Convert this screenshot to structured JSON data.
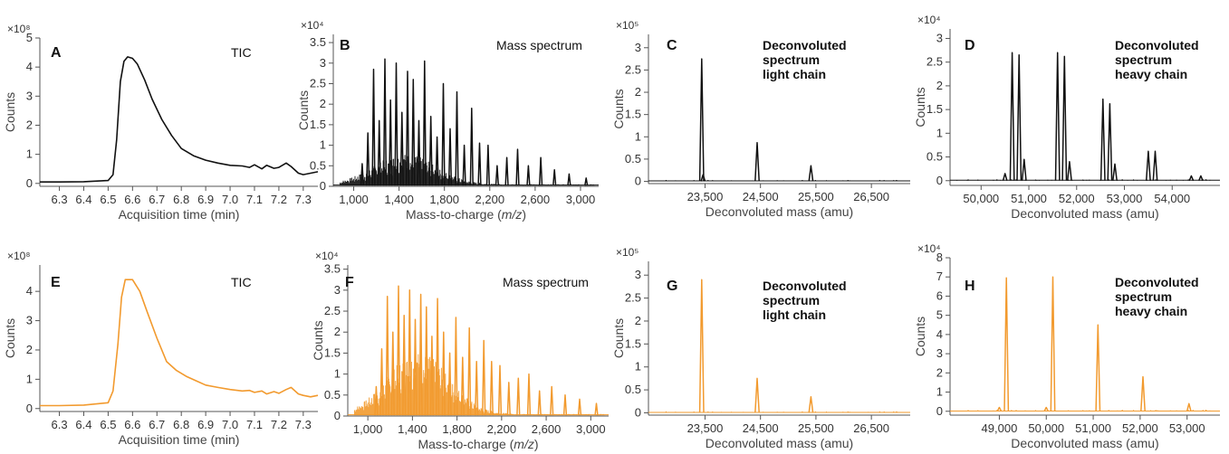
{
  "colors": {
    "black_series": "#111111",
    "orange_series": "#F29A2E"
  },
  "chart_data": [
    {
      "id": "A",
      "type": "line",
      "color": "#111111",
      "title": "TIC",
      "multiplier": "×10⁸",
      "xlabel": "Acquisition time (min)",
      "ylabel": "Counts",
      "xlim": [
        6.22,
        7.36
      ],
      "ylim": [
        -0.1,
        5
      ],
      "xticks": [
        6.3,
        6.4,
        6.5,
        6.6,
        6.7,
        6.8,
        6.9,
        7.0,
        7.1,
        7.2,
        7.3
      ],
      "xtick_labels": [
        "6.3",
        "6.4",
        "6.5",
        "6.6",
        "6.7",
        "6.8",
        "6.9",
        "7.0",
        "7.1",
        "7.2",
        "7.3"
      ],
      "yticks": [
        0,
        1,
        2,
        3,
        4,
        5
      ],
      "ytick_labels": [
        "0",
        "1",
        "2",
        "3",
        "4",
        "5"
      ],
      "x": [
        6.22,
        6.3,
        6.4,
        6.5,
        6.52,
        6.535,
        6.55,
        6.565,
        6.58,
        6.6,
        6.62,
        6.65,
        6.68,
        6.72,
        6.76,
        6.8,
        6.85,
        6.9,
        6.95,
        7.0,
        7.05,
        7.08,
        7.1,
        7.13,
        7.15,
        7.18,
        7.2,
        7.23,
        7.25,
        7.28,
        7.3,
        7.33,
        7.36
      ],
      "y": [
        0.05,
        0.05,
        0.06,
        0.1,
        0.3,
        1.5,
        3.5,
        4.2,
        4.35,
        4.3,
        4.1,
        3.55,
        2.9,
        2.2,
        1.65,
        1.2,
        0.95,
        0.8,
        0.7,
        0.62,
        0.6,
        0.55,
        0.64,
        0.5,
        0.62,
        0.52,
        0.55,
        0.7,
        0.58,
        0.35,
        0.3,
        0.35,
        0.4
      ]
    },
    {
      "id": "B",
      "type": "line",
      "color": "#111111",
      "title": "Mass spectrum",
      "multiplier": "×10⁴",
      "xlabel": "Mass-to-charge",
      "xlabel_italic": "m/z",
      "ylabel": "Counts",
      "xlim": [
        820,
        3160
      ],
      "ylim": [
        0,
        3.7
      ],
      "xticks": [
        1000,
        1400,
        1800,
        2200,
        2600,
        3000
      ],
      "xtick_labels": [
        "1,000",
        "1,400",
        "1,800",
        "2,200",
        "2,600",
        "3,000"
      ],
      "yticks": [
        0,
        0.5,
        1,
        1.5,
        2,
        2.5,
        3,
        3.5
      ],
      "ytick_labels": [
        "0",
        "0.5",
        "1",
        "1.5",
        "2",
        "2.5",
        "3",
        "3.5"
      ],
      "peak_x": [
        1075,
        1125,
        1175,
        1225,
        1275,
        1325,
        1375,
        1425,
        1475,
        1525,
        1575,
        1625,
        1680,
        1735,
        1790,
        1850,
        1910,
        1975,
        2040,
        2110,
        2185,
        2265,
        2350,
        2445,
        2540,
        2650,
        2770,
        2900,
        3050
      ],
      "peak_y": [
        0.55,
        1.3,
        2.85,
        1.6,
        3.1,
        2.1,
        3.0,
        1.8,
        2.8,
        2.6,
        1.6,
        3.05,
        1.7,
        1.2,
        2.5,
        1.4,
        2.3,
        1.0,
        1.9,
        1.05,
        1.0,
        0.5,
        0.7,
        0.9,
        0.5,
        0.7,
        0.4,
        0.3,
        0.2
      ],
      "envelope_peak": 0.75
    },
    {
      "id": "C",
      "type": "line",
      "color": "#111111",
      "title": [
        "Deconvoluted",
        "spectrum",
        "light chain"
      ],
      "multiplier": "×10⁵",
      "xlabel": "Deconvoluted mass (amu)",
      "ylabel": "Counts",
      "xlim": [
        22480,
        27200
      ],
      "ylim": [
        -0.05,
        3.3
      ],
      "xticks": [
        23500,
        24500,
        25500,
        26500
      ],
      "xtick_labels": [
        "23,500",
        "24,500",
        "25,500",
        "26,500"
      ],
      "yticks": [
        0,
        0.5,
        1,
        1.5,
        2,
        2.5,
        3
      ],
      "ytick_labels": [
        "0",
        "0.5",
        "1",
        "1.5",
        "2",
        "2.5",
        "3"
      ],
      "peak_x": [
        23440,
        23465,
        24440,
        25410
      ],
      "peak_y": [
        2.75,
        0.15,
        0.87,
        0.35
      ]
    },
    {
      "id": "D",
      "type": "line",
      "color": "#111111",
      "title": [
        "Deconvoluted",
        "spectrum",
        "heavy chain"
      ],
      "multiplier": "×10⁴",
      "xlabel": "Deconvoluted mass (amu)",
      "ylabel": "Counts",
      "xlim": [
        49350,
        55000
      ],
      "ylim": [
        -0.1,
        3.2
      ],
      "xticks": [
        50000,
        51000,
        52000,
        53000,
        54000
      ],
      "xtick_labels": [
        "50,000",
        "51,000",
        "52,000",
        "53,000",
        "54,000"
      ],
      "yticks": [
        0,
        0.5,
        1,
        1.5,
        2,
        2.5,
        3
      ],
      "ytick_labels": [
        "0",
        "0.5",
        "1",
        "1.5",
        "2",
        "2.5",
        "3"
      ],
      "peak_x": [
        50650,
        50795,
        51600,
        51745,
        52550,
        52695,
        53500,
        53645,
        50900,
        51850,
        52800,
        50500,
        54400,
        54600
      ],
      "peak_y": [
        2.7,
        2.65,
        2.7,
        2.62,
        1.72,
        1.62,
        0.62,
        0.62,
        0.45,
        0.4,
        0.35,
        0.15,
        0.1,
        0.1
      ]
    },
    {
      "id": "E",
      "type": "line",
      "color": "#F29A2E",
      "title": "TIC",
      "multiplier": "×10⁸",
      "xlabel": "Acquisition time (min)",
      "ylabel": "Counts",
      "xlim": [
        6.22,
        7.36
      ],
      "ylim": [
        -0.1,
        4.9
      ],
      "xticks": [
        6.3,
        6.4,
        6.5,
        6.6,
        6.7,
        6.8,
        6.9,
        7.0,
        7.1,
        7.2,
        7.3
      ],
      "xtick_labels": [
        "6.3",
        "6.4",
        "6.5",
        "6.6",
        "6.7",
        "6.8",
        "6.9",
        "7.0",
        "7.1",
        "7.2",
        "7.3"
      ],
      "yticks": [
        0,
        1,
        2,
        3,
        4
      ],
      "ytick_labels": [
        "0",
        "1",
        "2",
        "3",
        "4"
      ],
      "x": [
        6.22,
        6.3,
        6.4,
        6.5,
        6.52,
        6.54,
        6.555,
        6.57,
        6.6,
        6.63,
        6.66,
        6.7,
        6.74,
        6.78,
        6.82,
        6.86,
        6.9,
        6.95,
        7.0,
        7.05,
        7.08,
        7.1,
        7.13,
        7.15,
        7.18,
        7.2,
        7.23,
        7.25,
        7.28,
        7.3,
        7.33,
        7.36
      ],
      "y": [
        0.1,
        0.1,
        0.12,
        0.2,
        0.6,
        2.2,
        3.8,
        4.4,
        4.4,
        4.0,
        3.3,
        2.4,
        1.6,
        1.3,
        1.1,
        0.95,
        0.8,
        0.72,
        0.65,
        0.6,
        0.62,
        0.55,
        0.6,
        0.5,
        0.58,
        0.52,
        0.65,
        0.72,
        0.5,
        0.45,
        0.4,
        0.45
      ]
    },
    {
      "id": "F",
      "type": "line",
      "color": "#F29A2E",
      "title": "Mass spectrum",
      "multiplier": "×10⁴",
      "xlabel": "Mass-to-charge",
      "xlabel_italic": "m/z",
      "ylabel": "Counts",
      "xlim": [
        820,
        3160
      ],
      "ylim": [
        0,
        3.6
      ],
      "xticks": [
        1000,
        1400,
        1800,
        2200,
        2600,
        3000
      ],
      "xtick_labels": [
        "1,000",
        "1,400",
        "1,800",
        "2,200",
        "2,600",
        "3,000"
      ],
      "yticks": [
        0,
        0.5,
        1,
        1.5,
        2,
        2.5,
        3,
        3.5
      ],
      "ytick_labels": [
        "0",
        "0.5",
        "1",
        "1.5",
        "2",
        "2.5",
        "3",
        "3.5"
      ],
      "peak_x": [
        1075,
        1125,
        1175,
        1225,
        1275,
        1325,
        1375,
        1425,
        1475,
        1525,
        1575,
        1625,
        1680,
        1735,
        1790,
        1850,
        1910,
        1975,
        2040,
        2110,
        2185,
        2265,
        2350,
        2445,
        2540,
        2650,
        2770,
        2900,
        3050
      ],
      "peak_y": [
        0.7,
        1.6,
        2.85,
        2.0,
        3.1,
        2.4,
        3.0,
        2.3,
        2.9,
        2.6,
        1.9,
        2.8,
        2.0,
        1.5,
        2.35,
        1.4,
        2.1,
        1.3,
        1.8,
        1.3,
        1.2,
        0.8,
        0.9,
        1.0,
        0.6,
        0.7,
        0.5,
        0.4,
        0.3
      ],
      "envelope_peak": 1.5
    },
    {
      "id": "G",
      "type": "line",
      "color": "#F29A2E",
      "title": [
        "Deconvoluted",
        "spectrum",
        "light chain"
      ],
      "multiplier": "×10⁵",
      "xlabel": "Deconvoluted mass (amu)",
      "ylabel": "Counts",
      "xlim": [
        22480,
        27200
      ],
      "ylim": [
        -0.05,
        3.3
      ],
      "xticks": [
        23500,
        24500,
        25500,
        26500
      ],
      "xtick_labels": [
        "23,500",
        "24,500",
        "25,500",
        "26,500"
      ],
      "yticks": [
        0,
        0.5,
        1,
        1.5,
        2,
        2.5,
        3
      ],
      "ytick_labels": [
        "0",
        "0.5",
        "1",
        "1.5",
        "2",
        "2.5",
        "3"
      ],
      "peak_x": [
        23440,
        24440,
        25410
      ],
      "peak_y": [
        2.9,
        0.75,
        0.35
      ]
    },
    {
      "id": "H",
      "type": "line",
      "color": "#F29A2E",
      "title": [
        "Deconvoluted",
        "spectrum",
        "heavy chain"
      ],
      "multiplier": "×10⁴",
      "xlabel": "Deconvoluted mass (amu)",
      "ylabel": "Counts",
      "xlim": [
        47950,
        53700
      ],
      "ylim": [
        -0.2,
        8
      ],
      "xticks": [
        49000,
        50000,
        51000,
        52000,
        53000
      ],
      "xtick_labels": [
        "49,000",
        "50,000",
        "51,000",
        "52,000",
        "53,000"
      ],
      "yticks": [
        0,
        1,
        2,
        3,
        4,
        5,
        6,
        7,
        8
      ],
      "ytick_labels": [
        "0",
        "1",
        "2",
        "3",
        "4",
        "5",
        "6",
        "7",
        "8"
      ],
      "peak_x": [
        49150,
        50140,
        51100,
        52060,
        53040,
        49000,
        50000
      ],
      "peak_y": [
        6.95,
        7.0,
        4.5,
        1.8,
        0.4,
        0.2,
        0.2
      ]
    }
  ]
}
